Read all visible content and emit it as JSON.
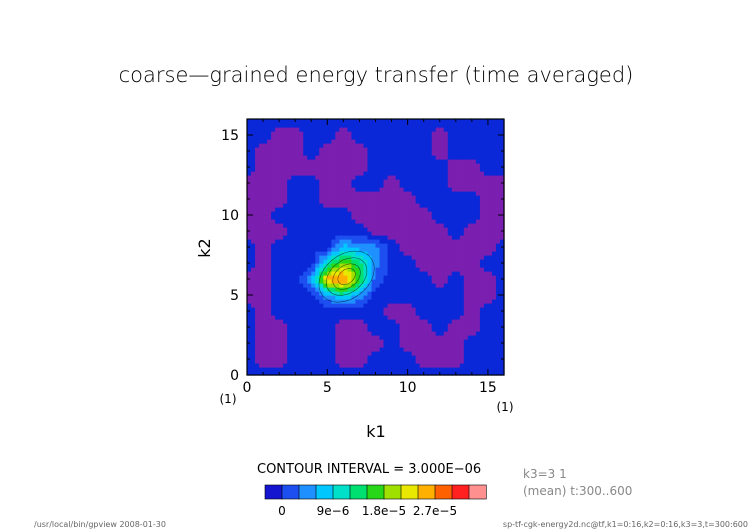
{
  "chart_data": {
    "type": "heatmap",
    "title": "coarse—grained energy transfer (time averaged)",
    "xlabel": "k1",
    "ylabel": "k2",
    "xlim": [
      0,
      16
    ],
    "ylim": [
      0,
      16
    ],
    "x_ticks": [
      "0",
      "5",
      "10",
      "15"
    ],
    "y_ticks": [
      "0",
      "5",
      "10",
      "15"
    ],
    "x_ticks_values": [
      0,
      5,
      10,
      15
    ],
    "y_ticks_values": [
      0,
      5,
      10,
      15
    ],
    "x_unit_label": "(1)",
    "y_unit_label": "(1)",
    "contour_interval_text": "CONTOUR INTERVAL = 3.000E−06",
    "contour_interval": 3e-06,
    "levels": [
      -3e-06,
      0,
      3e-06,
      6e-06,
      9e-06,
      1.2e-05,
      1.5e-05,
      1.8e-05,
      2.1e-05,
      2.4e-05,
      2.7e-05,
      3e-05,
      3.3e-05
    ],
    "colorbar": {
      "colors": [
        "#1515d0",
        "#1d4ff0",
        "#1e90ff",
        "#00c8ff",
        "#00e0c8",
        "#00e070",
        "#28d818",
        "#a0e000",
        "#e8e800",
        "#ffb000",
        "#ff6000",
        "#ff2020",
        "#ff9090"
      ],
      "labels": [
        "0",
        "9e−6",
        "1.8e−5",
        "2.7e−5"
      ],
      "label_values": [
        0,
        9e-06,
        1.8e-05,
        2.7e-05
      ]
    },
    "background_colors": {
      "negative": "#7a1fb0",
      "low": "#0a28d8"
    },
    "grid": false,
    "peak": {
      "k1": 6,
      "k2": 6,
      "value": 3e-05
    },
    "z": [
      [
        0,
        0,
        0,
        0,
        0,
        0,
        0,
        0,
        0,
        0,
        0,
        0,
        0,
        0,
        0,
        0,
        0
      ],
      [
        0,
        -1,
        -1,
        0,
        0,
        0,
        -1,
        -1,
        0,
        0,
        0,
        -1,
        -1,
        -1,
        0,
        0,
        0
      ],
      [
        0,
        -1,
        -1,
        0,
        0,
        0,
        -1,
        -1,
        -1,
        0,
        -1,
        -1,
        -1,
        -1,
        0,
        0,
        0
      ],
      [
        0,
        -1,
        -1,
        0,
        0,
        0,
        -1,
        -1,
        0,
        0,
        -1,
        -1,
        0,
        -1,
        -1,
        0,
        0
      ],
      [
        0,
        -1,
        0,
        0,
        0,
        0,
        0,
        0,
        0,
        -1,
        -1,
        0,
        0,
        0,
        -1,
        0,
        0
      ],
      [
        -1,
        -1,
        0,
        0,
        0,
        2,
        4,
        2,
        0,
        0,
        0,
        0,
        0,
        0,
        -1,
        -1,
        0
      ],
      [
        -1,
        -1,
        0,
        0,
        2,
        9,
        10,
        6,
        1,
        0,
        0,
        0,
        -1,
        0,
        -1,
        -1,
        0
      ],
      [
        0,
        -1,
        0,
        0,
        0,
        4,
        7,
        5,
        2,
        0,
        0,
        -1,
        -1,
        -1,
        -1,
        0,
        0
      ],
      [
        0,
        -1,
        0,
        0,
        0,
        0,
        3,
        2,
        2,
        0,
        -1,
        -1,
        -1,
        -1,
        -1,
        -1,
        0
      ],
      [
        -1,
        -1,
        -1,
        0,
        0,
        0,
        0,
        0,
        -1,
        -1,
        -1,
        -1,
        -1,
        0,
        -1,
        -1,
        -1
      ],
      [
        -1,
        -1,
        0,
        0,
        0,
        0,
        0,
        -1,
        -1,
        -1,
        -1,
        -1,
        0,
        0,
        0,
        -1,
        -1
      ],
      [
        -1,
        -1,
        -1,
        0,
        0,
        -1,
        -1,
        -1,
        -1,
        -1,
        -1,
        0,
        0,
        0,
        0,
        -1,
        -1
      ],
      [
        -1,
        -1,
        -1,
        0,
        0,
        -1,
        -1,
        0,
        0,
        -1,
        0,
        0,
        0,
        -1,
        -1,
        -1,
        -1
      ],
      [
        0,
        -1,
        -1,
        -1,
        -1,
        -1,
        -1,
        -1,
        0,
        0,
        0,
        0,
        0,
        -1,
        -1,
        0,
        0
      ],
      [
        0,
        -1,
        -1,
        -1,
        0,
        -1,
        -1,
        -1,
        0,
        0,
        0,
        0,
        -1,
        0,
        0,
        0,
        0
      ],
      [
        0,
        0,
        -1,
        -1,
        0,
        0,
        -1,
        0,
        0,
        0,
        0,
        0,
        -1,
        0,
        0,
        0,
        0
      ],
      [
        0,
        0,
        0,
        0,
        0,
        0,
        0,
        0,
        0,
        0,
        0,
        0,
        0,
        0,
        0,
        0,
        0
      ]
    ],
    "z_note_units": "multiples of contour interval, row index = k2 (0..16), column index = k1 (0..16)"
  },
  "info": {
    "k3_line": "k3=3 1",
    "time_line": "(mean) t:300..600"
  },
  "footer": {
    "left": "/usr/local/bin/gpview   2008-01-30",
    "right": "sp-tf-cgk-energy2d.nc@tf,k1=0:16,k2=0:16,k3=3,t=300:600"
  }
}
